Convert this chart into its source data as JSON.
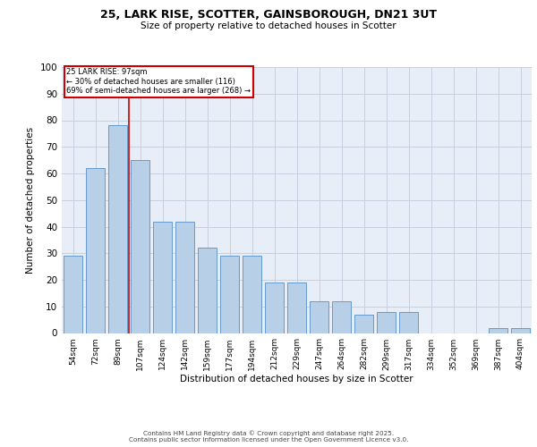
{
  "title_line1": "25, LARK RISE, SCOTTER, GAINSBOROUGH, DN21 3UT",
  "title_line2": "Size of property relative to detached houses in Scotter",
  "xlabel": "Distribution of detached houses by size in Scotter",
  "ylabel": "Number of detached properties",
  "categories": [
    "54sqm",
    "72sqm",
    "89sqm",
    "107sqm",
    "124sqm",
    "142sqm",
    "159sqm",
    "177sqm",
    "194sqm",
    "212sqm",
    "229sqm",
    "247sqm",
    "264sqm",
    "282sqm",
    "299sqm",
    "317sqm",
    "334sqm",
    "352sqm",
    "369sqm",
    "387sqm",
    "404sqm"
  ],
  "values": [
    29,
    62,
    78,
    65,
    42,
    42,
    32,
    29,
    29,
    19,
    19,
    12,
    12,
    7,
    8,
    8,
    0,
    0,
    0,
    2,
    2
  ],
  "bar_color": "#b8cfe8",
  "bar_edge_color": "#6699cc",
  "bg_color": "#e8eef8",
  "grid_color": "#c8d0e0",
  "redline_x": 2.5,
  "redline_label": "25 LARK RISE: 97sqm",
  "annotation_line1": "← 30% of detached houses are smaller (116)",
  "annotation_line2": "69% of semi-detached houses are larger (268) →",
  "annotation_box_color": "#ffffff",
  "annotation_box_edge": "#cc0000",
  "ylim": [
    0,
    100
  ],
  "yticks": [
    0,
    10,
    20,
    30,
    40,
    50,
    60,
    70,
    80,
    90,
    100
  ],
  "footer_line1": "Contains HM Land Registry data © Crown copyright and database right 2025.",
  "footer_line2": "Contains public sector information licensed under the Open Government Licence v3.0."
}
